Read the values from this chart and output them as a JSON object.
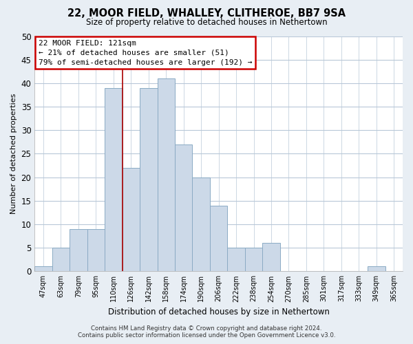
{
  "title": "22, MOOR FIELD, WHALLEY, CLITHEROE, BB7 9SA",
  "subtitle": "Size of property relative to detached houses in Nethertown",
  "xlabel": "Distribution of detached houses by size in Nethertown",
  "ylabel": "Number of detached properties",
  "bar_color": "#ccd9e8",
  "bar_edgecolor": "#8aaac4",
  "bin_labels": [
    "47sqm",
    "63sqm",
    "79sqm",
    "95sqm",
    "110sqm",
    "126sqm",
    "142sqm",
    "158sqm",
    "174sqm",
    "190sqm",
    "206sqm",
    "222sqm",
    "238sqm",
    "254sqm",
    "270sqm",
    "285sqm",
    "301sqm",
    "317sqm",
    "333sqm",
    "349sqm",
    "365sqm"
  ],
  "bar_heights": [
    1,
    5,
    9,
    9,
    39,
    22,
    39,
    41,
    27,
    20,
    14,
    5,
    5,
    6,
    0,
    0,
    0,
    0,
    0,
    1,
    0
  ],
  "ylim": [
    0,
    50
  ],
  "yticks": [
    0,
    5,
    10,
    15,
    20,
    25,
    30,
    35,
    40,
    45,
    50
  ],
  "vline_x_index": 4,
  "annotation_line1": "22 MOOR FIELD: 121sqm",
  "annotation_line2": "← 21% of detached houses are smaller (51)",
  "annotation_line3": "79% of semi-detached houses are larger (192) →",
  "footer_line1": "Contains HM Land Registry data © Crown copyright and database right 2024.",
  "footer_line2": "Contains public sector information licensed under the Open Government Licence v3.0.",
  "background_color": "#e8eef4",
  "plot_background": "#ffffff",
  "grid_color": "#b8c8d8",
  "vline_color": "#aa0000"
}
